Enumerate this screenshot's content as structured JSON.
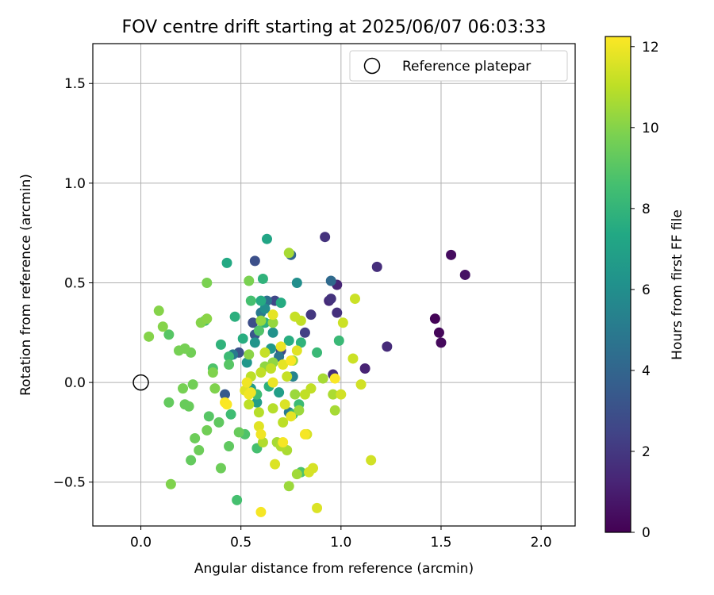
{
  "chart_data": {
    "type": "scatter",
    "title": "FOV centre drift starting at 2025/06/07 06:03:33",
    "xlabel": "Angular distance from reference (arcmin)",
    "ylabel": "Rotation from reference (arcmin)",
    "xlim": [
      -0.24,
      2.17
    ],
    "ylim": [
      -0.72,
      1.7
    ],
    "xticks": [
      0.0,
      0.5,
      1.0,
      1.5,
      2.0
    ],
    "xtick_labels": [
      "0.0",
      "0.5",
      "1.0",
      "1.5",
      "2.0"
    ],
    "yticks": [
      -0.5,
      0.0,
      0.5,
      1.0,
      1.5
    ],
    "ytick_labels": [
      "−0.5",
      "0.0",
      "0.5",
      "1.0",
      "1.5"
    ],
    "grid": true,
    "legend": {
      "position": "top-right",
      "label": "Reference platepar",
      "marker": "open-circle"
    },
    "reference_point": {
      "x": 0.0,
      "y": 0.0
    },
    "colorbar": {
      "label": "Hours from first FF file",
      "colormap": "viridis",
      "range": [
        0,
        12.25
      ],
      "ticks": [
        0,
        2,
        4,
        6,
        8,
        10,
        12
      ],
      "tick_labels": [
        "0",
        "2",
        "4",
        "6",
        "8",
        "10",
        "12"
      ]
    },
    "points": [
      {
        "x": 1.47,
        "y": 0.32,
        "h": 0.1
      },
      {
        "x": 1.49,
        "y": 0.25,
        "h": 0.2
      },
      {
        "x": 1.5,
        "y": 0.2,
        "h": 0.3
      },
      {
        "x": 1.55,
        "y": 0.64,
        "h": 0.4
      },
      {
        "x": 1.62,
        "y": 0.54,
        "h": 0.6
      },
      {
        "x": 1.12,
        "y": 0.07,
        "h": 1.2
      },
      {
        "x": 1.18,
        "y": 0.58,
        "h": 1.6
      },
      {
        "x": 1.23,
        "y": 0.18,
        "h": 1.5
      },
      {
        "x": 0.92,
        "y": 0.73,
        "h": 1.8
      },
      {
        "x": 0.94,
        "y": 0.41,
        "h": 1.5
      },
      {
        "x": 0.95,
        "y": 0.42,
        "h": 1.8
      },
      {
        "x": 0.98,
        "y": 0.49,
        "h": 1.3
      },
      {
        "x": 0.98,
        "y": 0.35,
        "h": 1.7
      },
      {
        "x": 0.96,
        "y": 0.04,
        "h": 1.6
      },
      {
        "x": 0.85,
        "y": 0.34,
        "h": 2.0
      },
      {
        "x": 0.82,
        "y": 0.25,
        "h": 2.3
      },
      {
        "x": 0.7,
        "y": 0.16,
        "h": 2.6
      },
      {
        "x": 0.67,
        "y": 0.41,
        "h": 2.6
      },
      {
        "x": 0.57,
        "y": 0.61,
        "h": 3.0
      },
      {
        "x": 0.56,
        "y": 0.3,
        "h": 2.9
      },
      {
        "x": 0.57,
        "y": 0.24,
        "h": 3.3
      },
      {
        "x": 0.49,
        "y": 0.15,
        "h": 3.1
      },
      {
        "x": 0.42,
        "y": -0.06,
        "h": 3.5
      },
      {
        "x": 0.95,
        "y": 0.51,
        "h": 4.2
      },
      {
        "x": 0.75,
        "y": 0.64,
        "h": 4.0
      },
      {
        "x": 0.63,
        "y": 0.41,
        "h": 4.5
      },
      {
        "x": 0.59,
        "y": 0.26,
        "h": 4.6
      },
      {
        "x": 0.69,
        "y": 0.13,
        "h": 4.7
      },
      {
        "x": 0.6,
        "y": 0.35,
        "h": 5.0
      },
      {
        "x": 0.46,
        "y": 0.14,
        "h": 5.0
      },
      {
        "x": 0.74,
        "y": -0.15,
        "h": 5.0
      },
      {
        "x": 0.76,
        "y": 0.03,
        "h": 5.5
      },
      {
        "x": 0.78,
        "y": 0.5,
        "h": 6.0
      },
      {
        "x": 0.62,
        "y": 0.37,
        "h": 6.0
      },
      {
        "x": 0.66,
        "y": 0.25,
        "h": 6.2
      },
      {
        "x": 0.57,
        "y": 0.2,
        "h": 6.3
      },
      {
        "x": 0.65,
        "y": 0.17,
        "h": 6.5
      },
      {
        "x": 0.53,
        "y": 0.1,
        "h": 6.5
      },
      {
        "x": 0.55,
        "y": -0.03,
        "h": 6.7
      },
      {
        "x": 0.69,
        "y": -0.05,
        "h": 6.8
      },
      {
        "x": 0.58,
        "y": -0.1,
        "h": 6.8
      },
      {
        "x": 0.63,
        "y": 0.72,
        "h": 7.2
      },
      {
        "x": 0.43,
        "y": 0.6,
        "h": 7.4
      },
      {
        "x": 0.6,
        "y": 0.41,
        "h": 7.5
      },
      {
        "x": 0.7,
        "y": 0.4,
        "h": 7.5
      },
      {
        "x": 0.47,
        "y": 0.33,
        "h": 7.7
      },
      {
        "x": 0.51,
        "y": 0.22,
        "h": 7.6
      },
      {
        "x": 0.62,
        "y": 0.3,
        "h": 7.8
      },
      {
        "x": 0.74,
        "y": 0.21,
        "h": 7.6
      },
      {
        "x": 0.8,
        "y": 0.2,
        "h": 7.9
      },
      {
        "x": 0.64,
        "y": -0.02,
        "h": 7.8
      },
      {
        "x": 0.4,
        "y": 0.19,
        "h": 7.9
      },
      {
        "x": 0.61,
        "y": 0.52,
        "h": 7.9
      },
      {
        "x": 0.99,
        "y": 0.21,
        "h": 8.2
      },
      {
        "x": 0.88,
        "y": 0.15,
        "h": 8.2
      },
      {
        "x": 0.79,
        "y": -0.11,
        "h": 8.3
      },
      {
        "x": 0.76,
        "y": -0.16,
        "h": 8.3
      },
      {
        "x": 0.44,
        "y": 0.13,
        "h": 8.3
      },
      {
        "x": 0.45,
        "y": -0.16,
        "h": 8.4
      },
      {
        "x": 0.58,
        "y": -0.06,
        "h": 8.4
      },
      {
        "x": 0.58,
        "y": -0.33,
        "h": 8.6
      },
      {
        "x": 0.48,
        "y": -0.59,
        "h": 8.6
      },
      {
        "x": 0.8,
        "y": -0.45,
        "h": 8.8
      },
      {
        "x": 0.32,
        "y": 0.31,
        "h": 8.6
      },
      {
        "x": 0.55,
        "y": 0.41,
        "h": 8.6
      },
      {
        "x": 0.52,
        "y": -0.26,
        "h": 8.8
      },
      {
        "x": 0.59,
        "y": 0.26,
        "h": 8.9
      },
      {
        "x": 0.36,
        "y": 0.07,
        "h": 8.8
      },
      {
        "x": 0.14,
        "y": 0.24,
        "h": 9.0
      },
      {
        "x": 0.34,
        "y": -0.17,
        "h": 9.0
      },
      {
        "x": 0.44,
        "y": 0.09,
        "h": 9.0
      },
      {
        "x": 0.39,
        "y": -0.2,
        "h": 9.2
      },
      {
        "x": 0.44,
        "y": -0.32,
        "h": 9.2
      },
      {
        "x": 0.25,
        "y": -0.39,
        "h": 9.3
      },
      {
        "x": 0.14,
        "y": -0.1,
        "h": 9.3
      },
      {
        "x": 0.22,
        "y": -0.11,
        "h": 9.4
      },
      {
        "x": 0.24,
        "y": -0.12,
        "h": 9.4
      },
      {
        "x": 0.49,
        "y": -0.25,
        "h": 9.4
      },
      {
        "x": 0.4,
        "y": -0.43,
        "h": 9.5
      },
      {
        "x": 0.29,
        "y": -0.34,
        "h": 9.5
      },
      {
        "x": 0.27,
        "y": -0.28,
        "h": 9.5
      },
      {
        "x": 0.33,
        "y": -0.24,
        "h": 9.6
      },
      {
        "x": 0.26,
        "y": -0.01,
        "h": 9.6
      },
      {
        "x": 0.21,
        "y": -0.03,
        "h": 9.7
      },
      {
        "x": 0.25,
        "y": 0.15,
        "h": 9.6
      },
      {
        "x": 0.19,
        "y": 0.16,
        "h": 9.7
      },
      {
        "x": 0.22,
        "y": 0.17,
        "h": 9.7
      },
      {
        "x": 0.54,
        "y": 0.51,
        "h": 9.8
      },
      {
        "x": 0.33,
        "y": 0.5,
        "h": 9.8
      },
      {
        "x": 0.36,
        "y": 0.05,
        "h": 9.9
      },
      {
        "x": 0.37,
        "y": -0.03,
        "h": 9.9
      },
      {
        "x": 0.15,
        "y": -0.51,
        "h": 9.9
      },
      {
        "x": 0.04,
        "y": 0.23,
        "h": 10.0
      },
      {
        "x": 0.11,
        "y": 0.28,
        "h": 10.0
      },
      {
        "x": 0.09,
        "y": 0.36,
        "h": 10.0
      },
      {
        "x": 0.3,
        "y": 0.3,
        "h": 10.0
      },
      {
        "x": 0.33,
        "y": 0.32,
        "h": 10.1
      },
      {
        "x": 0.54,
        "y": 0.14,
        "h": 10.1
      },
      {
        "x": 0.62,
        "y": 0.08,
        "h": 10.2
      },
      {
        "x": 0.66,
        "y": 0.1,
        "h": 10.2
      },
      {
        "x": 0.6,
        "y": 0.31,
        "h": 10.3
      },
      {
        "x": 0.66,
        "y": 0.3,
        "h": 10.3
      },
      {
        "x": 0.76,
        "y": 0.11,
        "h": 10.4
      },
      {
        "x": 0.77,
        "y": -0.06,
        "h": 10.4
      },
      {
        "x": 0.79,
        "y": -0.14,
        "h": 10.4
      },
      {
        "x": 0.74,
        "y": -0.52,
        "h": 10.4
      },
      {
        "x": 0.78,
        "y": -0.46,
        "h": 10.5
      },
      {
        "x": 0.74,
        "y": 0.65,
        "h": 10.6
      },
      {
        "x": 0.97,
        "y": -0.14,
        "h": 10.6
      },
      {
        "x": 0.96,
        "y": -0.06,
        "h": 10.7
      },
      {
        "x": 0.91,
        "y": 0.02,
        "h": 10.6
      },
      {
        "x": 0.68,
        "y": -0.3,
        "h": 10.6
      },
      {
        "x": 0.73,
        "y": -0.34,
        "h": 10.7
      },
      {
        "x": 0.61,
        "y": -0.3,
        "h": 10.8
      },
      {
        "x": 0.7,
        "y": -0.32,
        "h": 10.8
      },
      {
        "x": 0.59,
        "y": -0.15,
        "h": 10.9
      },
      {
        "x": 0.66,
        "y": -0.13,
        "h": 10.9
      },
      {
        "x": 0.71,
        "y": -0.2,
        "h": 11.0
      },
      {
        "x": 0.55,
        "y": 0.03,
        "h": 11.0
      },
      {
        "x": 0.54,
        "y": -0.11,
        "h": 11.0
      },
      {
        "x": 0.6,
        "y": 0.05,
        "h": 11.1
      },
      {
        "x": 0.65,
        "y": 0.07,
        "h": 11.1
      },
      {
        "x": 0.85,
        "y": -0.03,
        "h": 11.1
      },
      {
        "x": 0.82,
        "y": -0.06,
        "h": 11.1
      },
      {
        "x": 0.8,
        "y": 0.31,
        "h": 11.1
      },
      {
        "x": 0.62,
        "y": 0.15,
        "h": 11.2
      },
      {
        "x": 0.73,
        "y": 0.03,
        "h": 11.2
      },
      {
        "x": 0.77,
        "y": 0.33,
        "h": 11.2
      },
      {
        "x": 1.01,
        "y": 0.3,
        "h": 11.3
      },
      {
        "x": 1.07,
        "y": 0.42,
        "h": 11.3
      },
      {
        "x": 1.06,
        "y": 0.12,
        "h": 11.3
      },
      {
        "x": 1.1,
        "y": -0.01,
        "h": 11.4
      },
      {
        "x": 1.0,
        "y": -0.06,
        "h": 11.4
      },
      {
        "x": 1.15,
        "y": -0.39,
        "h": 11.4
      },
      {
        "x": 0.83,
        "y": -0.26,
        "h": 11.5
      },
      {
        "x": 0.86,
        "y": -0.43,
        "h": 11.5
      },
      {
        "x": 0.84,
        "y": -0.45,
        "h": 11.5
      },
      {
        "x": 0.88,
        "y": -0.63,
        "h": 11.6
      },
      {
        "x": 0.67,
        "y": -0.41,
        "h": 11.6
      },
      {
        "x": 0.72,
        "y": -0.11,
        "h": 11.6
      },
      {
        "x": 0.78,
        "y": 0.16,
        "h": 11.7
      },
      {
        "x": 0.52,
        "y": -0.04,
        "h": 11.7
      },
      {
        "x": 0.59,
        "y": -0.22,
        "h": 11.7
      },
      {
        "x": 0.66,
        "y": 0.34,
        "h": 11.8
      },
      {
        "x": 0.71,
        "y": 0.09,
        "h": 11.8
      },
      {
        "x": 0.75,
        "y": -0.17,
        "h": 11.8
      },
      {
        "x": 0.66,
        "y": 0.0,
        "h": 11.9
      },
      {
        "x": 0.7,
        "y": 0.18,
        "h": 11.9
      },
      {
        "x": 0.54,
        "y": -0.06,
        "h": 12.0
      },
      {
        "x": 0.53,
        "y": 0.0,
        "h": 12.0
      },
      {
        "x": 0.55,
        "y": -0.05,
        "h": 12.0
      },
      {
        "x": 0.6,
        "y": -0.26,
        "h": 12.0
      },
      {
        "x": 0.6,
        "y": -0.65,
        "h": 12.1
      },
      {
        "x": 0.71,
        "y": -0.3,
        "h": 12.1
      },
      {
        "x": 0.82,
        "y": -0.26,
        "h": 12.1
      },
      {
        "x": 0.75,
        "y": 0.11,
        "h": 12.2
      },
      {
        "x": 0.97,
        "y": 0.02,
        "h": 12.2
      },
      {
        "x": 0.42,
        "y": -0.1,
        "h": 12.2
      },
      {
        "x": 0.43,
        "y": -0.11,
        "h": 12.2
      }
    ]
  }
}
